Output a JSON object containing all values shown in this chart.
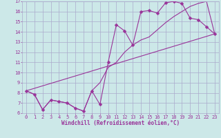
{
  "bg_color": "#cce8e8",
  "grid_color": "#aaaacc",
  "line_color": "#993399",
  "markersize": 2.5,
  "linewidth": 0.8,
  "xlabel": "Windchill (Refroidissement éolien,°C)",
  "xlabel_fontsize": 5.5,
  "tick_fontsize": 5.0,
  "xlim": [
    -0.5,
    23.5
  ],
  "ylim": [
    6,
    17
  ],
  "xticks": [
    0,
    1,
    2,
    3,
    4,
    5,
    6,
    7,
    8,
    9,
    10,
    11,
    12,
    13,
    14,
    15,
    16,
    17,
    18,
    19,
    20,
    21,
    22,
    23
  ],
  "yticks": [
    6,
    7,
    8,
    9,
    10,
    11,
    12,
    13,
    14,
    15,
    16,
    17
  ],
  "series1_x": [
    0,
    1,
    2,
    3,
    4,
    5,
    6,
    7,
    8,
    9,
    10,
    11,
    12,
    13,
    14,
    15,
    16,
    17,
    18,
    19,
    20,
    21,
    22,
    23
  ],
  "series1_y": [
    8.2,
    7.85,
    6.35,
    7.3,
    7.15,
    7.0,
    6.5,
    6.2,
    8.2,
    6.85,
    11.0,
    14.7,
    14.1,
    12.7,
    16.0,
    16.1,
    15.85,
    16.85,
    17.0,
    16.8,
    15.35,
    15.2,
    14.5,
    13.8
  ],
  "series2_x": [
    0,
    1,
    2,
    3,
    4,
    5,
    6,
    7,
    8,
    9,
    10,
    11,
    12,
    13,
    14,
    15,
    16,
    17,
    18,
    19,
    20,
    21,
    22,
    23
  ],
  "series2_y": [
    8.2,
    7.85,
    6.35,
    7.3,
    7.15,
    7.0,
    6.5,
    6.2,
    8.2,
    9.0,
    10.5,
    11.0,
    12.0,
    12.7,
    13.2,
    13.5,
    14.2,
    14.9,
    15.5,
    16.0,
    16.5,
    16.8,
    17.0,
    13.8
  ],
  "series3_x": [
    0,
    23
  ],
  "series3_y": [
    8.2,
    13.8
  ]
}
